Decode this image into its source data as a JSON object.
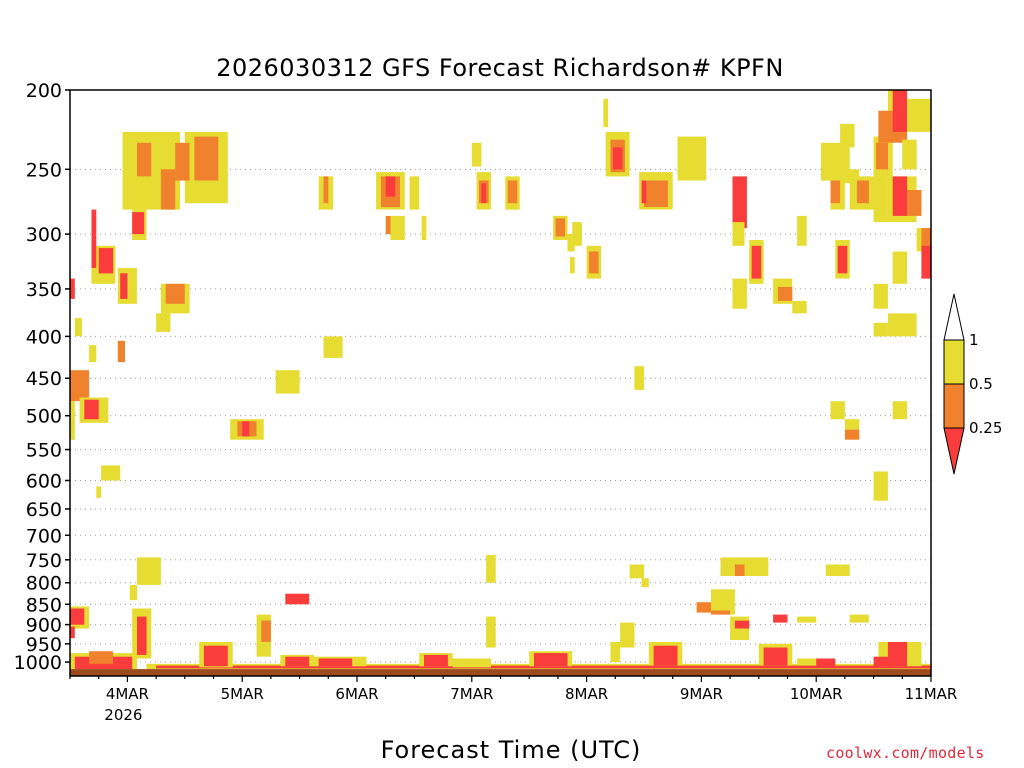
{
  "chart_data": {
    "type": "heatmap",
    "title": "2026030312 GFS Forecast Richardson# KPFN",
    "xlabel": "Forecast Time (UTC)",
    "ylabel": "",
    "x_range_hours": [
      0,
      180
    ],
    "x_ticks": [
      {
        "hour": 12,
        "label": "4MAR",
        "sublabel": "2026"
      },
      {
        "hour": 36,
        "label": "5MAR"
      },
      {
        "hour": 60,
        "label": "6MAR"
      },
      {
        "hour": 84,
        "label": "7MAR"
      },
      {
        "hour": 108,
        "label": "8MAR"
      },
      {
        "hour": 132,
        "label": "9MAR"
      },
      {
        "hour": 156,
        "label": "10MAR"
      },
      {
        "hour": 180,
        "label": "11MAR"
      }
    ],
    "y_range_hpa": [
      1040,
      200
    ],
    "y_ticks": [
      200,
      250,
      300,
      350,
      400,
      450,
      500,
      550,
      600,
      650,
      700,
      750,
      800,
      850,
      900,
      950,
      1000
    ],
    "y_tick_labels": [
      "200",
      "250",
      "300",
      "350",
      "400",
      "450",
      "500",
      "550",
      "600",
      "650",
      "700",
      "750",
      "800",
      "850",
      "900",
      "950",
      "1000"
    ],
    "gridlines": "dotted",
    "legend": {
      "position": "right",
      "levels": [
        "1",
        "0.5",
        "0.25"
      ],
      "bins": [
        {
          "name": "0.5-1",
          "color": "#e6dc32"
        },
        {
          "name": "0.25-0.5",
          "color": "#f0822d"
        },
        {
          "name": "<0.25",
          "color": "#fa3c3c"
        }
      ]
    },
    "colors": {
      "high": "#e6dc32",
      "mid": "#f0822d",
      "low": "#fa3c3c",
      "ground": "#9b4b1c"
    },
    "ground_pressure_hpa": 1020,
    "cells": [
      {
        "h0": 11,
        "h1": 23,
        "p0": 225,
        "p1": 280,
        "c": "high"
      },
      {
        "h0": 14,
        "h1": 17,
        "p0": 232,
        "p1": 255,
        "c": "mid"
      },
      {
        "h0": 19,
        "h1": 22,
        "p0": 250,
        "p1": 280,
        "c": "mid"
      },
      {
        "h0": 24,
        "h1": 33,
        "p0": 225,
        "p1": 275,
        "c": "high"
      },
      {
        "h0": 26,
        "h1": 31,
        "p0": 228,
        "p1": 258,
        "c": "mid"
      },
      {
        "h0": 22,
        "h1": 25,
        "p0": 232,
        "p1": 258,
        "c": "mid"
      },
      {
        "h0": 13,
        "h1": 16,
        "p0": 280,
        "p1": 305,
        "c": "high"
      },
      {
        "h0": 13,
        "h1": 15.5,
        "p0": 282,
        "p1": 300,
        "c": "low"
      },
      {
        "h0": 4.5,
        "h1": 9.5,
        "p0": 310,
        "p1": 345,
        "c": "high"
      },
      {
        "h0": 6,
        "h1": 9,
        "p0": 312,
        "p1": 335,
        "c": "low"
      },
      {
        "h0": 4.5,
        "h1": 5.5,
        "p0": 280,
        "p1": 330,
        "c": "low"
      },
      {
        "h0": 10,
        "h1": 14,
        "p0": 330,
        "p1": 365,
        "c": "high"
      },
      {
        "h0": 10.5,
        "h1": 12,
        "p0": 335,
        "p1": 360,
        "c": "low"
      },
      {
        "h0": 19,
        "h1": 25,
        "p0": 345,
        "p1": 375,
        "c": "high"
      },
      {
        "h0": 20,
        "h1": 24,
        "p0": 345,
        "p1": 365,
        "c": "mid"
      },
      {
        "h0": 18,
        "h1": 21,
        "p0": 375,
        "p1": 395,
        "c": "high"
      },
      {
        "h0": 0,
        "h1": 1,
        "p0": 340,
        "p1": 360,
        "c": "low"
      },
      {
        "h0": 1,
        "h1": 2.5,
        "p0": 380,
        "p1": 400,
        "c": "high"
      },
      {
        "h0": 4,
        "h1": 5.5,
        "p0": 410,
        "p1": 430,
        "c": "high"
      },
      {
        "h0": 10,
        "h1": 11.5,
        "p0": 405,
        "p1": 430,
        "c": "mid"
      },
      {
        "h0": 0,
        "h1": 4,
        "p0": 440,
        "p1": 480,
        "c": "mid"
      },
      {
        "h0": 0,
        "h1": 1,
        "p0": 480,
        "p1": 535,
        "c": "high"
      },
      {
        "h0": 2,
        "h1": 8,
        "p0": 475,
        "p1": 510,
        "c": "high"
      },
      {
        "h0": 3,
        "h1": 6,
        "p0": 478,
        "p1": 505,
        "c": "low"
      },
      {
        "h0": 6.5,
        "h1": 10.5,
        "p0": 575,
        "p1": 600,
        "c": "high"
      },
      {
        "h0": 5.5,
        "h1": 6.5,
        "p0": 610,
        "p1": 630,
        "c": "high"
      },
      {
        "h0": 33.5,
        "h1": 40.5,
        "p0": 505,
        "p1": 535,
        "c": "high"
      },
      {
        "h0": 35,
        "h1": 39,
        "p0": 508,
        "p1": 530,
        "c": "mid"
      },
      {
        "h0": 36,
        "h1": 37.5,
        "p0": 508,
        "p1": 530,
        "c": "low"
      },
      {
        "h0": 43,
        "h1": 48,
        "p0": 440,
        "p1": 470,
        "c": "high"
      },
      {
        "h0": 53,
        "h1": 57,
        "p0": 400,
        "p1": 425,
        "c": "high"
      },
      {
        "h0": 52,
        "h1": 55,
        "p0": 255,
        "p1": 280,
        "c": "high"
      },
      {
        "h0": 53,
        "h1": 54,
        "p0": 255,
        "p1": 275,
        "c": "mid"
      },
      {
        "h0": 64,
        "h1": 70,
        "p0": 252,
        "p1": 280,
        "c": "high"
      },
      {
        "h0": 65,
        "h1": 69,
        "p0": 255,
        "p1": 278,
        "c": "mid"
      },
      {
        "h0": 66,
        "h1": 68,
        "p0": 255,
        "p1": 270,
        "c": "low"
      },
      {
        "h0": 67,
        "h1": 70,
        "p0": 285,
        "p1": 305,
        "c": "high"
      },
      {
        "h0": 66,
        "h1": 67,
        "p0": 285,
        "p1": 300,
        "c": "mid"
      },
      {
        "h0": 71,
        "h1": 73,
        "p0": 255,
        "p1": 280,
        "c": "high"
      },
      {
        "h0": 73.5,
        "h1": 74.5,
        "p0": 285,
        "p1": 305,
        "c": "high"
      },
      {
        "h0": 85,
        "h1": 88,
        "p0": 252,
        "p1": 280,
        "c": "high"
      },
      {
        "h0": 85.5,
        "h1": 87.5,
        "p0": 258,
        "p1": 275,
        "c": "mid"
      },
      {
        "h0": 86,
        "h1": 87,
        "p0": 260,
        "p1": 275,
        "c": "low"
      },
      {
        "h0": 91,
        "h1": 94,
        "p0": 255,
        "p1": 280,
        "c": "high"
      },
      {
        "h0": 91.5,
        "h1": 93.5,
        "p0": 258,
        "p1": 275,
        "c": "mid"
      },
      {
        "h0": 84,
        "h1": 86,
        "p0": 232,
        "p1": 248,
        "c": "high"
      },
      {
        "h0": 101,
        "h1": 104,
        "p0": 285,
        "p1": 305,
        "c": "high"
      },
      {
        "h0": 101.5,
        "h1": 103.5,
        "p0": 287,
        "p1": 302,
        "c": "mid"
      },
      {
        "h0": 104,
        "h1": 105.5,
        "p0": 300,
        "p1": 315,
        "c": "high"
      },
      {
        "h0": 105,
        "h1": 107,
        "p0": 290,
        "p1": 310,
        "c": "high"
      },
      {
        "h0": 108,
        "h1": 111,
        "p0": 310,
        "p1": 340,
        "c": "high"
      },
      {
        "h0": 108.5,
        "h1": 110.5,
        "p0": 315,
        "p1": 335,
        "c": "mid"
      },
      {
        "h0": 104.5,
        "h1": 105.5,
        "p0": 320,
        "p1": 335,
        "c": "high"
      },
      {
        "h0": 112,
        "h1": 117,
        "p0": 225,
        "p1": 255,
        "c": "high"
      },
      {
        "h0": 113,
        "h1": 116,
        "p0": 230,
        "p1": 252,
        "c": "mid"
      },
      {
        "h0": 113.5,
        "h1": 115.5,
        "p0": 235,
        "p1": 250,
        "c": "low"
      },
      {
        "h0": 111.5,
        "h1": 112.5,
        "p0": 205,
        "p1": 222,
        "c": "high"
      },
      {
        "h0": 119,
        "h1": 126,
        "p0": 252,
        "p1": 280,
        "c": "high"
      },
      {
        "h0": 120,
        "h1": 125,
        "p0": 258,
        "p1": 278,
        "c": "mid"
      },
      {
        "h0": 119.5,
        "h1": 120.5,
        "p0": 258,
        "p1": 275,
        "c": "low"
      },
      {
        "h0": 127,
        "h1": 133,
        "p0": 228,
        "p1": 258,
        "c": "high"
      },
      {
        "h0": 138.5,
        "h1": 141.5,
        "p0": 255,
        "p1": 295,
        "c": "low"
      },
      {
        "h0": 138.5,
        "h1": 141,
        "p0": 290,
        "p1": 310,
        "c": "high"
      },
      {
        "h0": 142,
        "h1": 145,
        "p0": 305,
        "p1": 345,
        "c": "high"
      },
      {
        "h0": 142.5,
        "h1": 144.5,
        "p0": 310,
        "p1": 340,
        "c": "low"
      },
      {
        "h0": 138.5,
        "h1": 141.5,
        "p0": 340,
        "p1": 370,
        "c": "high"
      },
      {
        "h0": 147,
        "h1": 151,
        "p0": 340,
        "p1": 365,
        "c": "high"
      },
      {
        "h0": 148,
        "h1": 151,
        "p0": 348,
        "p1": 362,
        "c": "mid"
      },
      {
        "h0": 151,
        "h1": 154,
        "p0": 362,
        "p1": 375,
        "c": "high"
      },
      {
        "h0": 152,
        "h1": 154,
        "p0": 285,
        "p1": 310,
        "c": "high"
      },
      {
        "h0": 157,
        "h1": 163,
        "p0": 232,
        "p1": 258,
        "c": "high"
      },
      {
        "h0": 161,
        "h1": 164,
        "p0": 220,
        "p1": 235,
        "c": "high"
      },
      {
        "h0": 159,
        "h1": 162,
        "p0": 250,
        "p1": 280,
        "c": "high"
      },
      {
        "h0": 159,
        "h1": 161,
        "p0": 258,
        "p1": 275,
        "c": "mid"
      },
      {
        "h0": 162,
        "h1": 165,
        "p0": 250,
        "p1": 260,
        "c": "high"
      },
      {
        "h0": 163,
        "h1": 170,
        "p0": 255,
        "p1": 280,
        "c": "high"
      },
      {
        "h0": 164.5,
        "h1": 167,
        "p0": 258,
        "p1": 275,
        "c": "mid"
      },
      {
        "h0": 160,
        "h1": 163,
        "p0": 305,
        "p1": 340,
        "c": "high"
      },
      {
        "h0": 160.5,
        "h1": 162.5,
        "p0": 310,
        "p1": 335,
        "c": "low"
      },
      {
        "h0": 168,
        "h1": 172,
        "p0": 228,
        "p1": 255,
        "c": "high"
      },
      {
        "h0": 168.5,
        "h1": 171,
        "p0": 232,
        "p1": 255,
        "c": "mid"
      },
      {
        "h0": 168,
        "h1": 171,
        "p0": 250,
        "p1": 290,
        "c": "high"
      },
      {
        "h0": 171,
        "h1": 174,
        "p0": 200,
        "p1": 230,
        "c": "high"
      },
      {
        "h0": 169,
        "h1": 175,
        "p0": 212,
        "p1": 232,
        "c": "mid"
      },
      {
        "h0": 172,
        "h1": 175,
        "p0": 200,
        "p1": 225,
        "c": "low"
      },
      {
        "h0": 171,
        "h1": 177,
        "p0": 255,
        "p1": 290,
        "c": "high"
      },
      {
        "h0": 172,
        "h1": 175,
        "p0": 255,
        "p1": 285,
        "c": "low"
      },
      {
        "h0": 175,
        "h1": 178,
        "p0": 265,
        "p1": 285,
        "c": "mid"
      },
      {
        "h0": 175,
        "h1": 180,
        "p0": 205,
        "p1": 225,
        "c": "high"
      },
      {
        "h0": 174,
        "h1": 177,
        "p0": 230,
        "p1": 250,
        "c": "high"
      },
      {
        "h0": 177,
        "h1": 180,
        "p0": 295,
        "p1": 315,
        "c": "high"
      },
      {
        "h0": 178,
        "h1": 180,
        "p0": 295,
        "p1": 315,
        "c": "mid"
      },
      {
        "h0": 172,
        "h1": 175,
        "p0": 315,
        "p1": 345,
        "c": "high"
      },
      {
        "h0": 178,
        "h1": 180,
        "p0": 310,
        "p1": 340,
        "c": "low"
      },
      {
        "h0": 168,
        "h1": 171,
        "p0": 345,
        "p1": 370,
        "c": "high"
      },
      {
        "h0": 168,
        "h1": 171,
        "p0": 385,
        "p1": 400,
        "c": "high"
      },
      {
        "h0": 171,
        "h1": 177,
        "p0": 375,
        "p1": 400,
        "c": "high"
      },
      {
        "h0": 172,
        "h1": 175,
        "p0": 480,
        "p1": 505,
        "c": "high"
      },
      {
        "h0": 159,
        "h1": 162,
        "p0": 480,
        "p1": 505,
        "c": "high"
      },
      {
        "h0": 162,
        "h1": 165,
        "p0": 505,
        "p1": 520,
        "c": "high"
      },
      {
        "h0": 162,
        "h1": 165,
        "p0": 520,
        "p1": 535,
        "c": "mid"
      },
      {
        "h0": 168,
        "h1": 171,
        "p0": 585,
        "p1": 635,
        "c": "high"
      },
      {
        "h0": 118,
        "h1": 120,
        "p0": 435,
        "p1": 465,
        "c": "high"
      },
      {
        "h0": 0,
        "h1": 4,
        "p0": 855,
        "p1": 910,
        "c": "high"
      },
      {
        "h0": 0,
        "h1": 3,
        "p0": 860,
        "p1": 900,
        "c": "low"
      },
      {
        "h0": 0,
        "h1": 1,
        "p0": 905,
        "p1": 935,
        "c": "low"
      },
      {
        "h0": 0,
        "h1": 14,
        "p0": 975,
        "p1": 1020,
        "c": "high"
      },
      {
        "h0": 1,
        "h1": 13,
        "p0": 985,
        "p1": 1020,
        "c": "low"
      },
      {
        "h0": 4,
        "h1": 9,
        "p0": 970,
        "p1": 1005,
        "c": "mid"
      },
      {
        "h0": 13,
        "h1": 17,
        "p0": 860,
        "p1": 990,
        "c": "high"
      },
      {
        "h0": 14,
        "h1": 16,
        "p0": 880,
        "p1": 980,
        "c": "low"
      },
      {
        "h0": 14,
        "h1": 19,
        "p0": 745,
        "p1": 805,
        "c": "high"
      },
      {
        "h0": 12.5,
        "h1": 14,
        "p0": 805,
        "p1": 840,
        "c": "high"
      },
      {
        "h0": 16,
        "h1": 180,
        "p0": 1005,
        "p1": 1020,
        "c": "high"
      },
      {
        "h0": 18,
        "h1": 180,
        "p0": 1010,
        "p1": 1018,
        "c": "low"
      },
      {
        "h0": 27,
        "h1": 34,
        "p0": 945,
        "p1": 1015,
        "c": "high"
      },
      {
        "h0": 28,
        "h1": 33,
        "p0": 955,
        "p1": 1012,
        "c": "low"
      },
      {
        "h0": 39,
        "h1": 42,
        "p0": 875,
        "p1": 985,
        "c": "high"
      },
      {
        "h0": 40,
        "h1": 42,
        "p0": 890,
        "p1": 945,
        "c": "mid"
      },
      {
        "h0": 44,
        "h1": 51,
        "p0": 980,
        "p1": 1012,
        "c": "high"
      },
      {
        "h0": 45,
        "h1": 50,
        "p0": 985,
        "p1": 1012,
        "c": "low"
      },
      {
        "h0": 45,
        "h1": 50,
        "p0": 825,
        "p1": 850,
        "c": "low"
      },
      {
        "h0": 51,
        "h1": 62,
        "p0": 985,
        "p1": 1012,
        "c": "high"
      },
      {
        "h0": 52,
        "h1": 59,
        "p0": 990,
        "p1": 1012,
        "c": "low"
      },
      {
        "h0": 73,
        "h1": 80,
        "p0": 975,
        "p1": 1012,
        "c": "high"
      },
      {
        "h0": 74,
        "h1": 79,
        "p0": 980,
        "p1": 1012,
        "c": "low"
      },
      {
        "h0": 80,
        "h1": 88,
        "p0": 990,
        "p1": 1015,
        "c": "high"
      },
      {
        "h0": 87,
        "h1": 89,
        "p0": 880,
        "p1": 960,
        "c": "high"
      },
      {
        "h0": 87,
        "h1": 89,
        "p0": 740,
        "p1": 800,
        "c": "high"
      },
      {
        "h0": 96,
        "h1": 105,
        "p0": 970,
        "p1": 1012,
        "c": "high"
      },
      {
        "h0": 97,
        "h1": 104,
        "p0": 975,
        "p1": 1012,
        "c": "low"
      },
      {
        "h0": 115,
        "h1": 118,
        "p0": 895,
        "p1": 960,
        "c": "high"
      },
      {
        "h0": 113,
        "h1": 115,
        "p0": 945,
        "p1": 1000,
        "c": "high"
      },
      {
        "h0": 117,
        "h1": 120,
        "p0": 760,
        "p1": 790,
        "c": "high"
      },
      {
        "h0": 119.5,
        "h1": 121,
        "p0": 790,
        "p1": 810,
        "c": "high"
      },
      {
        "h0": 121,
        "h1": 128,
        "p0": 945,
        "p1": 1010,
        "c": "high"
      },
      {
        "h0": 122,
        "h1": 127,
        "p0": 955,
        "p1": 1010,
        "c": "low"
      },
      {
        "h0": 131,
        "h1": 134,
        "p0": 845,
        "p1": 870,
        "c": "mid"
      },
      {
        "h0": 134,
        "h1": 139,
        "p0": 815,
        "p1": 875,
        "c": "high"
      },
      {
        "h0": 134,
        "h1": 138,
        "p0": 865,
        "p1": 875,
        "c": "mid"
      },
      {
        "h0": 138,
        "h1": 142,
        "p0": 880,
        "p1": 940,
        "c": "high"
      },
      {
        "h0": 139,
        "h1": 142,
        "p0": 890,
        "p1": 910,
        "c": "low"
      },
      {
        "h0": 136,
        "h1": 146,
        "p0": 745,
        "p1": 785,
        "c": "high"
      },
      {
        "h0": 139,
        "h1": 141,
        "p0": 760,
        "p1": 785,
        "c": "mid"
      },
      {
        "h0": 144,
        "h1": 151,
        "p0": 950,
        "p1": 1010,
        "c": "high"
      },
      {
        "h0": 145,
        "h1": 150,
        "p0": 960,
        "p1": 1010,
        "c": "low"
      },
      {
        "h0": 147,
        "h1": 150,
        "p0": 875,
        "p1": 895,
        "c": "low"
      },
      {
        "h0": 152,
        "h1": 156,
        "p0": 880,
        "p1": 895,
        "c": "high"
      },
      {
        "h0": 152,
        "h1": 158,
        "p0": 990,
        "p1": 1010,
        "c": "high"
      },
      {
        "h0": 156,
        "h1": 160,
        "p0": 990,
        "p1": 1012,
        "c": "low"
      },
      {
        "h0": 158,
        "h1": 163,
        "p0": 760,
        "p1": 785,
        "c": "high"
      },
      {
        "h0": 163,
        "h1": 167,
        "p0": 875,
        "p1": 895,
        "c": "high"
      },
      {
        "h0": 169,
        "h1": 178,
        "p0": 945,
        "p1": 1012,
        "c": "high"
      },
      {
        "h0": 171,
        "h1": 175,
        "p0": 945,
        "p1": 1012,
        "c": "low"
      },
      {
        "h0": 168,
        "h1": 172,
        "p0": 985,
        "p1": 1012,
        "c": "low"
      }
    ]
  },
  "credit": "coolwx.com/models"
}
